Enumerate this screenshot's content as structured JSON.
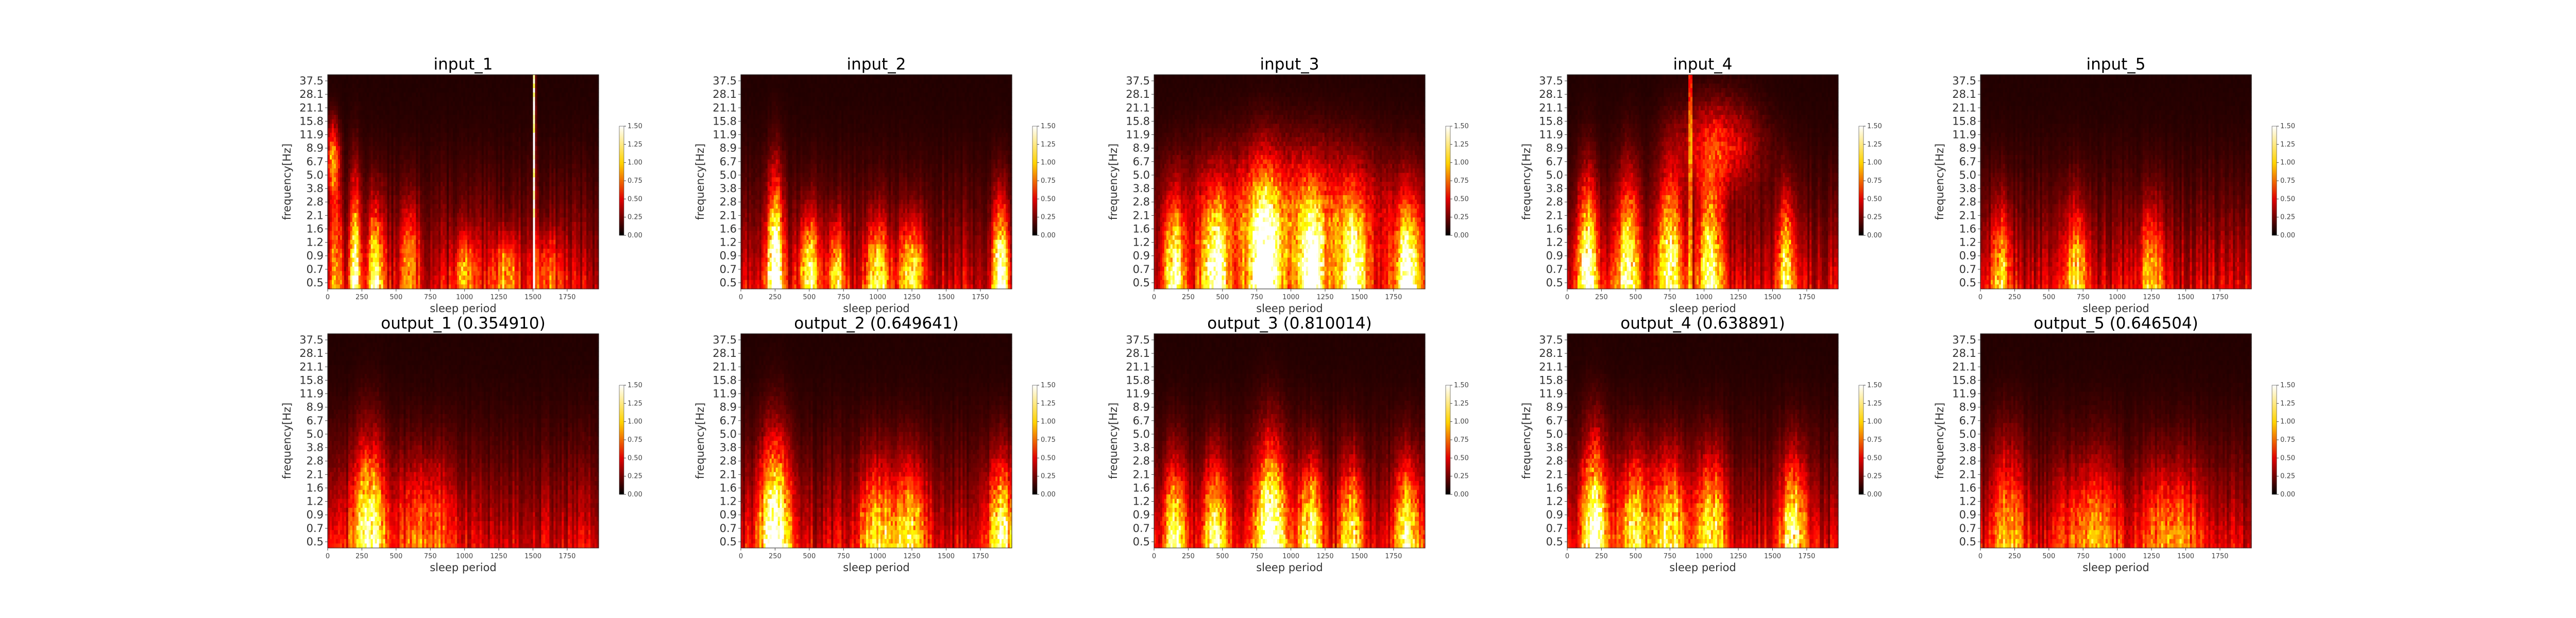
{
  "chart_data": [
    {
      "type": "heatmap",
      "id": "input_1",
      "title": "input_1",
      "xlabel": "sleep period",
      "ylabel": "frequency[Hz]",
      "xlim": [
        0,
        1980
      ],
      "xticks": [
        0,
        250,
        500,
        750,
        1000,
        1250,
        1500,
        1750
      ],
      "yticks": [
        "37.5",
        "28.1",
        "21.1",
        "15.8",
        "11.9",
        "8.9",
        "6.7",
        "5.0",
        "3.8",
        "2.8",
        "2.1",
        "1.6",
        "1.2",
        "0.9",
        "0.7",
        "0.5"
      ],
      "colorbar": {
        "min": 0.0,
        "max": 1.5,
        "ticks": [
          "1.50",
          "1.25",
          "1.00",
          "0.75",
          "0.50",
          "0.25",
          "0.00"
        ]
      },
      "colormap": "hot",
      "hotspots": [
        {
          "x": 200,
          "y": 0.6,
          "v": 1.2,
          "sx": 25,
          "sy": 0.5
        },
        {
          "x": 350,
          "y": 0.6,
          "v": 1.0,
          "sx": 40,
          "sy": 0.4
        },
        {
          "x": 60,
          "y": 0.9,
          "v": 0.6,
          "sx": 30,
          "sy": 0.4
        },
        {
          "x": 600,
          "y": 0.9,
          "v": 0.5,
          "sx": 50,
          "sy": 0.3
        },
        {
          "x": 40,
          "y": 6.7,
          "v": 0.8,
          "sx": 30,
          "sy": 0.2
        },
        {
          "x": 1000,
          "y": 0.7,
          "v": 0.5,
          "sx": 60,
          "sy": 0.2
        },
        {
          "x": 1300,
          "y": 0.7,
          "v": 0.6,
          "sx": 60,
          "sy": 0.2
        },
        {
          "x": 1600,
          "y": 0.7,
          "v": 0.4,
          "sx": 80,
          "sy": 0.2
        }
      ],
      "stripes": [
        {
          "x": 1510,
          "v": 1.5
        }
      ]
    },
    {
      "type": "heatmap",
      "id": "input_2",
      "title": "input_2",
      "xlabel": "sleep period",
      "ylabel": "frequency[Hz]",
      "xlim": [
        0,
        1980
      ],
      "xticks": [
        0,
        250,
        500,
        750,
        1000,
        1250,
        1500,
        1750
      ],
      "yticks": [
        "37.5",
        "28.1",
        "21.1",
        "15.8",
        "11.9",
        "8.9",
        "6.7",
        "5.0",
        "3.8",
        "2.8",
        "2.1",
        "1.6",
        "1.2",
        "0.9",
        "0.7",
        "0.5"
      ],
      "colorbar": {
        "min": 0.0,
        "max": 1.5,
        "ticks": [
          "1.50",
          "1.25",
          "1.00",
          "0.75",
          "0.50",
          "0.25",
          "0.00"
        ]
      },
      "colormap": "hot",
      "hotspots": [
        {
          "x": 250,
          "y": 0.6,
          "v": 1.5,
          "sx": 40,
          "sy": 0.5
        },
        {
          "x": 500,
          "y": 0.7,
          "v": 0.9,
          "sx": 50,
          "sy": 0.3
        },
        {
          "x": 700,
          "y": 0.6,
          "v": 0.8,
          "sx": 40,
          "sy": 0.3
        },
        {
          "x": 1000,
          "y": 0.6,
          "v": 0.9,
          "sx": 60,
          "sy": 0.3
        },
        {
          "x": 1250,
          "y": 0.6,
          "v": 0.9,
          "sx": 60,
          "sy": 0.3
        },
        {
          "x": 1900,
          "y": 0.6,
          "v": 1.3,
          "sx": 40,
          "sy": 0.4
        }
      ],
      "stripes": []
    },
    {
      "type": "heatmap",
      "id": "input_3",
      "title": "input_3",
      "xlabel": "sleep period",
      "ylabel": "frequency[Hz]",
      "xlim": [
        0,
        1980
      ],
      "xticks": [
        0,
        250,
        500,
        750,
        1000,
        1250,
        1500,
        1750
      ],
      "yticks": [
        "37.5",
        "28.1",
        "21.1",
        "15.8",
        "11.9",
        "8.9",
        "6.7",
        "5.0",
        "3.8",
        "2.8",
        "2.1",
        "1.6",
        "1.2",
        "0.9",
        "0.7",
        "0.5"
      ],
      "colorbar": {
        "min": 0.0,
        "max": 1.5,
        "ticks": [
          "1.50",
          "1.25",
          "1.00",
          "0.75",
          "0.50",
          "0.25",
          "0.00"
        ]
      },
      "colormap": "hot",
      "hotspots": [
        {
          "x": 150,
          "y": 0.6,
          "v": 1.0,
          "sx": 50,
          "sy": 0.4
        },
        {
          "x": 450,
          "y": 0.6,
          "v": 1.1,
          "sx": 60,
          "sy": 0.4
        },
        {
          "x": 800,
          "y": 0.6,
          "v": 1.4,
          "sx": 70,
          "sy": 0.5
        },
        {
          "x": 1150,
          "y": 0.6,
          "v": 1.2,
          "sx": 60,
          "sy": 0.4
        },
        {
          "x": 1450,
          "y": 0.6,
          "v": 1.1,
          "sx": 60,
          "sy": 0.4
        },
        {
          "x": 1850,
          "y": 0.6,
          "v": 1.2,
          "sx": 60,
          "sy": 0.4
        },
        {
          "x": 1000,
          "y": 2.0,
          "v": 0.6,
          "sx": 500,
          "sy": 0.4
        }
      ],
      "stripes": []
    },
    {
      "type": "heatmap",
      "id": "input_4",
      "title": "input_4",
      "xlabel": "sleep period",
      "ylabel": "frequency[Hz]",
      "xlim": [
        0,
        1980
      ],
      "xticks": [
        0,
        250,
        500,
        750,
        1000,
        1250,
        1500,
        1750
      ],
      "yticks": [
        "37.5",
        "28.1",
        "21.1",
        "15.8",
        "11.9",
        "8.9",
        "6.7",
        "5.0",
        "3.8",
        "2.8",
        "2.1",
        "1.6",
        "1.2",
        "0.9",
        "0.7",
        "0.5"
      ],
      "colorbar": {
        "min": 0.0,
        "max": 1.5,
        "ticks": [
          "1.50",
          "1.25",
          "1.00",
          "0.75",
          "0.50",
          "0.25",
          "0.00"
        ]
      },
      "colormap": "hot",
      "hotspots": [
        {
          "x": 150,
          "y": 0.6,
          "v": 1.3,
          "sx": 50,
          "sy": 0.5
        },
        {
          "x": 450,
          "y": 0.7,
          "v": 1.0,
          "sx": 60,
          "sy": 0.5
        },
        {
          "x": 750,
          "y": 0.8,
          "v": 1.0,
          "sx": 60,
          "sy": 0.5
        },
        {
          "x": 1050,
          "y": 0.7,
          "v": 1.0,
          "sx": 60,
          "sy": 0.5
        },
        {
          "x": 1600,
          "y": 0.7,
          "v": 1.0,
          "sx": 40,
          "sy": 0.4
        },
        {
          "x": 1100,
          "y": 8.9,
          "v": 0.5,
          "sx": 200,
          "sy": 0.25
        }
      ],
      "stripes": [
        {
          "x": 900,
          "v": 1.2
        }
      ]
    },
    {
      "type": "heatmap",
      "id": "input_5",
      "title": "input_5",
      "xlabel": "sleep period",
      "ylabel": "frequency[Hz]",
      "xlim": [
        0,
        1980
      ],
      "xticks": [
        0,
        250,
        500,
        750,
        1000,
        1250,
        1500,
        1750
      ],
      "yticks": [
        "37.5",
        "28.1",
        "21.1",
        "15.8",
        "11.9",
        "8.9",
        "6.7",
        "5.0",
        "3.8",
        "2.8",
        "2.1",
        "1.6",
        "1.2",
        "0.9",
        "0.7",
        "0.5"
      ],
      "colorbar": {
        "min": 0.0,
        "max": 1.5,
        "ticks": [
          "1.50",
          "1.25",
          "1.00",
          "0.75",
          "0.50",
          "0.25",
          "0.00"
        ]
      },
      "colormap": "hot",
      "hotspots": [
        {
          "x": 150,
          "y": 0.6,
          "v": 0.7,
          "sx": 50,
          "sy": 0.4
        },
        {
          "x": 700,
          "y": 0.6,
          "v": 0.7,
          "sx": 60,
          "sy": 0.4
        },
        {
          "x": 1250,
          "y": 0.6,
          "v": 0.6,
          "sx": 60,
          "sy": 0.4
        }
      ],
      "stripes": []
    },
    {
      "type": "heatmap",
      "id": "output_1",
      "title": "output_1 (0.354910)",
      "xlabel": "sleep period",
      "ylabel": "frequency[Hz]",
      "xlim": [
        0,
        1980
      ],
      "xticks": [
        0,
        250,
        500,
        750,
        1000,
        1250,
        1500,
        1750
      ],
      "yticks": [
        "37.5",
        "28.1",
        "21.1",
        "15.8",
        "11.9",
        "8.9",
        "6.7",
        "5.0",
        "3.8",
        "2.8",
        "2.1",
        "1.6",
        "1.2",
        "0.9",
        "0.7",
        "0.5"
      ],
      "colorbar": {
        "min": 0.0,
        "max": 1.5,
        "ticks": [
          "1.50",
          "1.25",
          "1.00",
          "0.75",
          "0.50",
          "0.25",
          "0.00"
        ]
      },
      "colormap": "hot",
      "hotspots": [
        {
          "x": 300,
          "y": 0.6,
          "v": 1.1,
          "sx": 80,
          "sy": 0.5
        },
        {
          "x": 700,
          "y": 0.7,
          "v": 0.4,
          "sx": 150,
          "sy": 0.4
        }
      ],
      "stripes": []
    },
    {
      "type": "heatmap",
      "id": "output_2",
      "title": "output_2 (0.649641)",
      "xlabel": "sleep period",
      "ylabel": "frequency[Hz]",
      "xlim": [
        0,
        1980
      ],
      "xticks": [
        0,
        250,
        500,
        750,
        1000,
        1250,
        1500,
        1750
      ],
      "yticks": [
        "37.5",
        "28.1",
        "21.1",
        "15.8",
        "11.9",
        "8.9",
        "6.7",
        "5.0",
        "3.8",
        "2.8",
        "2.1",
        "1.6",
        "1.2",
        "0.9",
        "0.7",
        "0.5"
      ],
      "colorbar": {
        "min": 0.0,
        "max": 1.5,
        "ticks": [
          "1.50",
          "1.25",
          "1.00",
          "0.75",
          "0.50",
          "0.25",
          "0.00"
        ]
      },
      "colormap": "hot",
      "hotspots": [
        {
          "x": 250,
          "y": 0.6,
          "v": 1.3,
          "sx": 80,
          "sy": 0.5
        },
        {
          "x": 1000,
          "y": 0.6,
          "v": 0.7,
          "sx": 100,
          "sy": 0.4
        },
        {
          "x": 1250,
          "y": 0.6,
          "v": 0.7,
          "sx": 80,
          "sy": 0.4
        },
        {
          "x": 1900,
          "y": 0.6,
          "v": 1.0,
          "sx": 60,
          "sy": 0.4
        }
      ],
      "stripes": []
    },
    {
      "type": "heatmap",
      "id": "output_3",
      "title": "output_3 (0.810014)",
      "xlabel": "sleep period",
      "ylabel": "frequency[Hz]",
      "xlim": [
        0,
        1980
      ],
      "xticks": [
        0,
        250,
        500,
        750,
        1000,
        1250,
        1500,
        1750
      ],
      "yticks": [
        "37.5",
        "28.1",
        "21.1",
        "15.8",
        "11.9",
        "8.9",
        "6.7",
        "5.0",
        "3.8",
        "2.8",
        "2.1",
        "1.6",
        "1.2",
        "0.9",
        "0.7",
        "0.5"
      ],
      "colorbar": {
        "min": 0.0,
        "max": 1.5,
        "ticks": [
          "1.50",
          "1.25",
          "1.00",
          "0.75",
          "0.50",
          "0.25",
          "0.00"
        ]
      },
      "colormap": "hot",
      "hotspots": [
        {
          "x": 150,
          "y": 0.6,
          "v": 0.9,
          "sx": 60,
          "sy": 0.4
        },
        {
          "x": 450,
          "y": 0.6,
          "v": 0.9,
          "sx": 70,
          "sy": 0.4
        },
        {
          "x": 850,
          "y": 0.6,
          "v": 1.3,
          "sx": 80,
          "sy": 0.5
        },
        {
          "x": 1150,
          "y": 0.6,
          "v": 1.0,
          "sx": 60,
          "sy": 0.4
        },
        {
          "x": 1450,
          "y": 0.6,
          "v": 0.9,
          "sx": 60,
          "sy": 0.4
        },
        {
          "x": 1850,
          "y": 0.6,
          "v": 1.0,
          "sx": 60,
          "sy": 0.4
        }
      ],
      "stripes": []
    },
    {
      "type": "heatmap",
      "id": "output_4",
      "title": "output_4 (0.638891)",
      "xlabel": "sleep period",
      "ylabel": "frequency[Hz]",
      "xlim": [
        0,
        1980
      ],
      "xticks": [
        0,
        250,
        500,
        750,
        1000,
        1250,
        1500,
        1750
      ],
      "yticks": [
        "37.5",
        "28.1",
        "21.1",
        "15.8",
        "11.9",
        "8.9",
        "6.7",
        "5.0",
        "3.8",
        "2.8",
        "2.1",
        "1.6",
        "1.2",
        "0.9",
        "0.7",
        "0.5"
      ],
      "colorbar": {
        "min": 0.0,
        "max": 1.5,
        "ticks": [
          "1.50",
          "1.25",
          "1.00",
          "0.75",
          "0.50",
          "0.25",
          "0.00"
        ]
      },
      "colormap": "hot",
      "hotspots": [
        {
          "x": 200,
          "y": 0.6,
          "v": 1.2,
          "sx": 70,
          "sy": 0.5
        },
        {
          "x": 500,
          "y": 0.7,
          "v": 0.8,
          "sx": 80,
          "sy": 0.4
        },
        {
          "x": 750,
          "y": 0.7,
          "v": 0.8,
          "sx": 80,
          "sy": 0.4
        },
        {
          "x": 1050,
          "y": 0.7,
          "v": 0.8,
          "sx": 80,
          "sy": 0.4
        },
        {
          "x": 1650,
          "y": 0.7,
          "v": 0.9,
          "sx": 60,
          "sy": 0.4
        }
      ],
      "stripes": []
    },
    {
      "type": "heatmap",
      "id": "output_5",
      "title": "output_5 (0.646504)",
      "xlabel": "sleep period",
      "ylabel": "frequency[Hz]",
      "xlim": [
        0,
        1980
      ],
      "xticks": [
        0,
        250,
        500,
        750,
        1000,
        1250,
        1500,
        1750
      ],
      "yticks": [
        "37.5",
        "28.1",
        "21.1",
        "15.8",
        "11.9",
        "8.9",
        "6.7",
        "5.0",
        "3.8",
        "2.8",
        "2.1",
        "1.6",
        "1.2",
        "0.9",
        "0.7",
        "0.5"
      ],
      "colorbar": {
        "min": 0.0,
        "max": 1.5,
        "ticks": [
          "1.50",
          "1.25",
          "1.00",
          "0.75",
          "0.50",
          "0.25",
          "0.00"
        ]
      },
      "colormap": "hot",
      "hotspots": [
        {
          "x": 200,
          "y": 0.6,
          "v": 0.6,
          "sx": 80,
          "sy": 0.5
        },
        {
          "x": 800,
          "y": 0.6,
          "v": 0.5,
          "sx": 150,
          "sy": 0.4
        },
        {
          "x": 1400,
          "y": 0.6,
          "v": 0.5,
          "sx": 150,
          "sy": 0.4
        }
      ],
      "stripes": []
    }
  ]
}
